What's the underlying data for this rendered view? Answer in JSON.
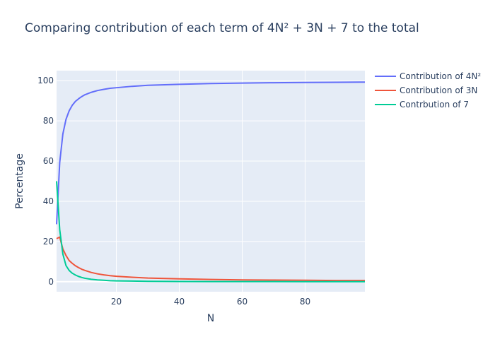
{
  "chart_data": {
    "type": "line",
    "title": "Comparing contribution of each term of 4N² + 3N + 7 to the total",
    "xlabel": "N",
    "ylabel": "Percentage",
    "xlim": [
      1,
      99
    ],
    "ylim": [
      -5,
      105
    ],
    "x_ticks": [
      20,
      40,
      60,
      80
    ],
    "y_ticks": [
      0,
      20,
      40,
      60,
      80,
      100
    ],
    "grid": true,
    "legend_position": "top-right",
    "series": [
      {
        "name": "Contribution of 4N²",
        "color": "#636efa",
        "x": [
          1,
          2,
          3,
          4,
          5,
          6,
          7,
          8,
          9,
          10,
          12,
          14,
          16,
          18,
          20,
          25,
          30,
          40,
          50,
          60,
          70,
          80,
          90,
          99
        ],
        "y": [
          28.6,
          59.3,
          73.5,
          80.8,
          85.0,
          87.8,
          89.7,
          91.0,
          92.1,
          93.0,
          94.2,
          95.1,
          95.7,
          96.2,
          96.5,
          97.2,
          97.7,
          98.2,
          98.6,
          98.8,
          99.0,
          99.1,
          99.2,
          99.3
        ]
      },
      {
        "name": "Contribution of 3N",
        "color": "#ef553b",
        "x": [
          1,
          2,
          3,
          4,
          5,
          6,
          7,
          8,
          9,
          10,
          12,
          14,
          16,
          18,
          20,
          25,
          30,
          40,
          50,
          60,
          70,
          80,
          90,
          99
        ],
        "y": [
          21.4,
          22.2,
          16.3,
          13.0,
          10.5,
          9.1,
          7.9,
          7.0,
          6.2,
          5.6,
          4.6,
          3.9,
          3.4,
          3.0,
          2.7,
          2.2,
          1.8,
          1.4,
          1.1,
          0.9,
          0.8,
          0.7,
          0.6,
          0.6
        ]
      },
      {
        "name": "Contrbution of 7",
        "color": "#00cc96",
        "x": [
          1,
          2,
          3,
          4,
          5,
          6,
          7,
          8,
          9,
          10,
          12,
          14,
          16,
          18,
          20,
          25,
          30,
          40,
          50,
          60,
          70,
          80,
          90,
          99
        ],
        "y": [
          50.0,
          25.9,
          13.7,
          8.0,
          5.6,
          4.2,
          3.3,
          2.6,
          2.1,
          1.7,
          1.2,
          0.9,
          0.7,
          0.5,
          0.4,
          0.3,
          0.2,
          0.1,
          0.07,
          0.05,
          0.04,
          0.03,
          0.02,
          0.02
        ]
      }
    ]
  }
}
